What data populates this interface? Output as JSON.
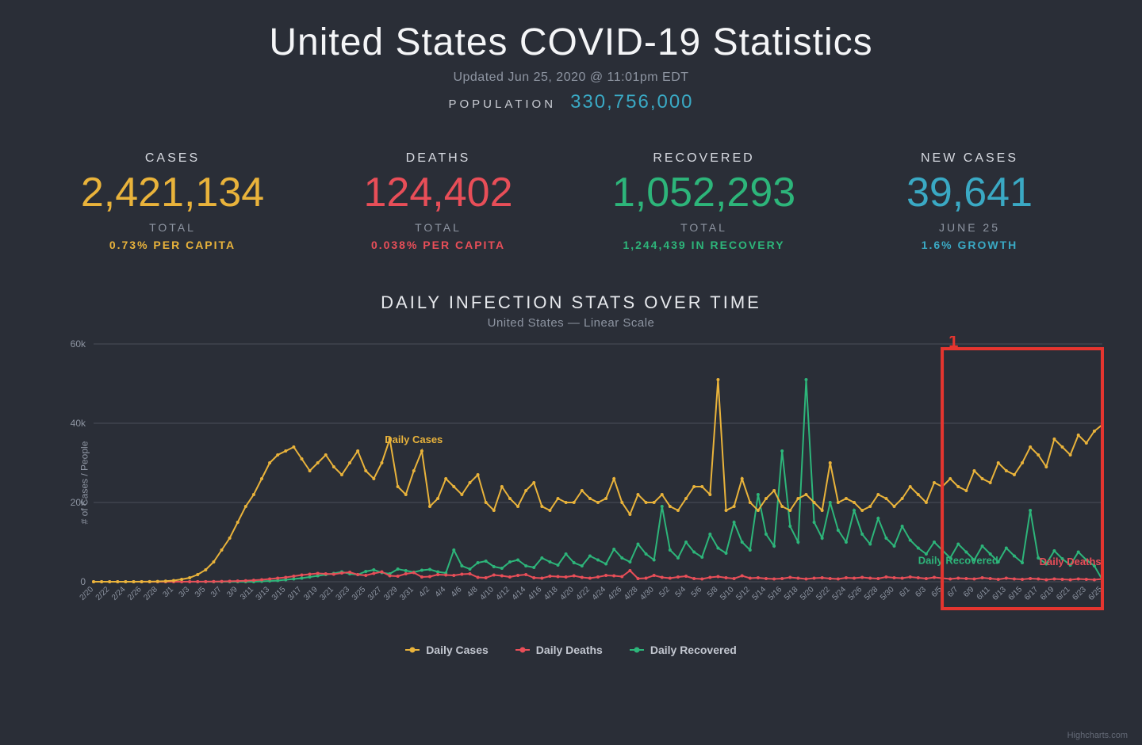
{
  "header": {
    "title": "United States COVID-19 Statistics",
    "updated": "Updated Jun 25, 2020 @ 11:01pm EDT",
    "population_label": "POPULATION",
    "population_value": "330,756,000"
  },
  "colors": {
    "background": "#2a2e37",
    "text_primary": "#e6e8ec",
    "text_muted": "#8e95a2",
    "cases": "#e9b33b",
    "deaths": "#e84e58",
    "recovered": "#2db57a",
    "newcases": "#3aa9c4",
    "grid": "#4a4f5a",
    "annotation": "#e5352f"
  },
  "stats": {
    "cases": {
      "label": "CASES",
      "value": "2,421,134",
      "sub1": "TOTAL",
      "sub2": "0.73% PER CAPITA"
    },
    "deaths": {
      "label": "DEATHS",
      "value": "124,402",
      "sub1": "TOTAL",
      "sub2": "0.038% PER CAPITA"
    },
    "recovered": {
      "label": "RECOVERED",
      "value": "1,052,293",
      "sub1": "TOTAL",
      "sub2": "1,244,439 IN RECOVERY"
    },
    "newcases": {
      "label": "NEW CASES",
      "value": "39,641",
      "sub1": "JUNE 25",
      "sub2": "1.6% GROWTH"
    }
  },
  "chart": {
    "title": "DAILY INFECTION STATS OVER TIME",
    "subtitle": "United States — Linear Scale",
    "ylabel": "# of Cases / People",
    "ylim": [
      0,
      60000
    ],
    "yticks": [
      0,
      20000,
      40000,
      60000
    ],
    "ytick_labels": [
      "0",
      "20k",
      "40k",
      "60k"
    ],
    "x_dates": [
      "2/20",
      "2/22",
      "2/24",
      "2/26",
      "2/28",
      "3/1",
      "3/3",
      "3/5",
      "3/7",
      "3/9",
      "3/11",
      "3/13",
      "3/15",
      "3/17",
      "3/19",
      "3/21",
      "3/23",
      "3/25",
      "3/27",
      "3/29",
      "3/31",
      "4/2",
      "4/4",
      "4/6",
      "4/8",
      "4/10",
      "4/12",
      "4/14",
      "4/16",
      "4/18",
      "4/20",
      "4/22",
      "4/24",
      "4/26",
      "4/28",
      "4/30",
      "5/2",
      "5/4",
      "5/6",
      "5/8",
      "5/10",
      "5/12",
      "5/14",
      "5/16",
      "5/18",
      "5/20",
      "5/22",
      "5/24",
      "5/26",
      "5/28",
      "5/30",
      "6/1",
      "6/3",
      "6/5",
      "6/7",
      "6/9",
      "6/11",
      "6/13",
      "6/15",
      "6/17",
      "6/19",
      "6/21",
      "6/23",
      "6/25"
    ],
    "series": {
      "daily_cases": {
        "label": "Daily Cases",
        "color": "#e9b33b",
        "values": [
          0,
          1,
          0,
          2,
          2,
          5,
          10,
          25,
          70,
          150,
          300,
          600,
          1000,
          1800,
          3000,
          5000,
          8000,
          11000,
          15000,
          19000,
          22000,
          26000,
          30000,
          32000,
          33000,
          34000,
          31000,
          28000,
          30000,
          32000,
          29000,
          27000,
          30000,
          33000,
          28000,
          26000,
          30000,
          36000,
          24000,
          22000,
          28000,
          33000,
          19000,
          21000,
          26000,
          24000,
          22000,
          25000,
          27000,
          20000,
          18000,
          24000,
          21000,
          19000,
          23000,
          25000,
          19000,
          18000,
          21000,
          20000,
          20000,
          23000,
          21000,
          20000,
          21000,
          26000,
          20000,
          17000,
          22000,
          20000,
          20000,
          22000,
          19000,
          18000,
          21000,
          24000,
          24000,
          22000,
          51000,
          18000,
          19000,
          26000,
          20000,
          18000,
          21000,
          23000,
          19000,
          18000,
          21000,
          22000,
          20000,
          18000,
          30000,
          20000,
          21000,
          20000,
          18000,
          19000,
          22000,
          21000,
          19000,
          21000,
          24000,
          22000,
          20000,
          25000,
          24000,
          26000,
          24000,
          23000,
          28000,
          26000,
          25000,
          30000,
          28000,
          27000,
          30000,
          34000,
          32000,
          29000,
          36000,
          34000,
          32000,
          37000,
          35000,
          38000,
          39641
        ]
      },
      "daily_deaths": {
        "label": "Daily Deaths",
        "color": "#e84e58",
        "values": [
          0,
          0,
          0,
          0,
          0,
          0,
          0,
          1,
          2,
          3,
          5,
          8,
          12,
          20,
          35,
          55,
          80,
          120,
          180,
          260,
          380,
          500,
          700,
          900,
          1100,
          1400,
          1700,
          1900,
          2100,
          2000,
          1900,
          2200,
          2400,
          1800,
          1600,
          2100,
          2500,
          1500,
          1400,
          2000,
          2300,
          1200,
          1300,
          1800,
          1700,
          1600,
          1900,
          2000,
          1100,
          1000,
          1700,
          1500,
          1200,
          1600,
          1800,
          1000,
          900,
          1400,
          1300,
          1200,
          1500,
          1100,
          900,
          1200,
          1600,
          1500,
          1300,
          2800,
          800,
          900,
          1600,
          1100,
          900,
          1200,
          1400,
          800,
          700,
          1100,
          1300,
          1000,
          800,
          1500,
          900,
          1000,
          800,
          700,
          800,
          1100,
          900,
          700,
          900,
          1000,
          800,
          700,
          1000,
          900,
          1100,
          900,
          800,
          1200,
          1000,
          900,
          1200,
          1000,
          800,
          1100,
          900,
          700,
          900,
          800,
          700,
          1000,
          800,
          600,
          900,
          700,
          600,
          800,
          700,
          500,
          700,
          600,
          500,
          700,
          600,
          500,
          700
        ]
      },
      "daily_recovered": {
        "label": "Daily Recovered",
        "color": "#2db57a",
        "values": [
          0,
          0,
          0,
          0,
          0,
          0,
          0,
          0,
          0,
          0,
          0,
          0,
          0,
          0,
          0,
          0,
          0,
          0,
          0,
          0,
          0,
          100,
          200,
          300,
          500,
          700,
          900,
          1200,
          1500,
          1800,
          2100,
          2500,
          2000,
          1800,
          2600,
          3000,
          2300,
          2000,
          3200,
          2800,
          2400,
          2900,
          3100,
          2500,
          2200,
          8000,
          4000,
          3200,
          4800,
          5200,
          3800,
          3400,
          5000,
          5500,
          4000,
          3600,
          6000,
          5000,
          4200,
          7000,
          4800,
          4000,
          6500,
          5500,
          4500,
          8200,
          6000,
          5000,
          9500,
          7000,
          5500,
          19000,
          8000,
          6000,
          10000,
          7500,
          6200,
          12000,
          8500,
          7200,
          15000,
          10000,
          8000,
          22000,
          12000,
          9000,
          33000,
          14000,
          10000,
          51000,
          15000,
          11000,
          20000,
          13000,
          10000,
          18000,
          12000,
          9500,
          16000,
          11000,
          9000,
          14000,
          10500,
          8500,
          7000,
          10000,
          8000,
          6000,
          9500,
          7500,
          5500,
          9000,
          7000,
          5000,
          8500,
          6500,
          4800,
          18000,
          6000,
          4500,
          7800,
          5800,
          4200,
          7500,
          5500,
          4000,
          500
        ]
      }
    },
    "inline_labels": {
      "cases": {
        "text": "Daily Cases",
        "x_idx": 40,
        "y": 35000
      },
      "recovered": {
        "text": "Daily Recovered",
        "x_idx": 108,
        "y": 4500
      },
      "deaths": {
        "text": "Daily Deaths",
        "x_idx": 122,
        "y": 4200
      }
    },
    "legend": [
      {
        "label": "Daily Cases",
        "color": "#e9b33b"
      },
      {
        "label": "Daily Deaths",
        "color": "#e84e58"
      },
      {
        "label": "Daily Recovered",
        "color": "#2db57a"
      }
    ],
    "annotation": {
      "label": "1",
      "x_start_idx": 106,
      "x_end_idx": 126
    },
    "credit": "Highcharts.com"
  }
}
